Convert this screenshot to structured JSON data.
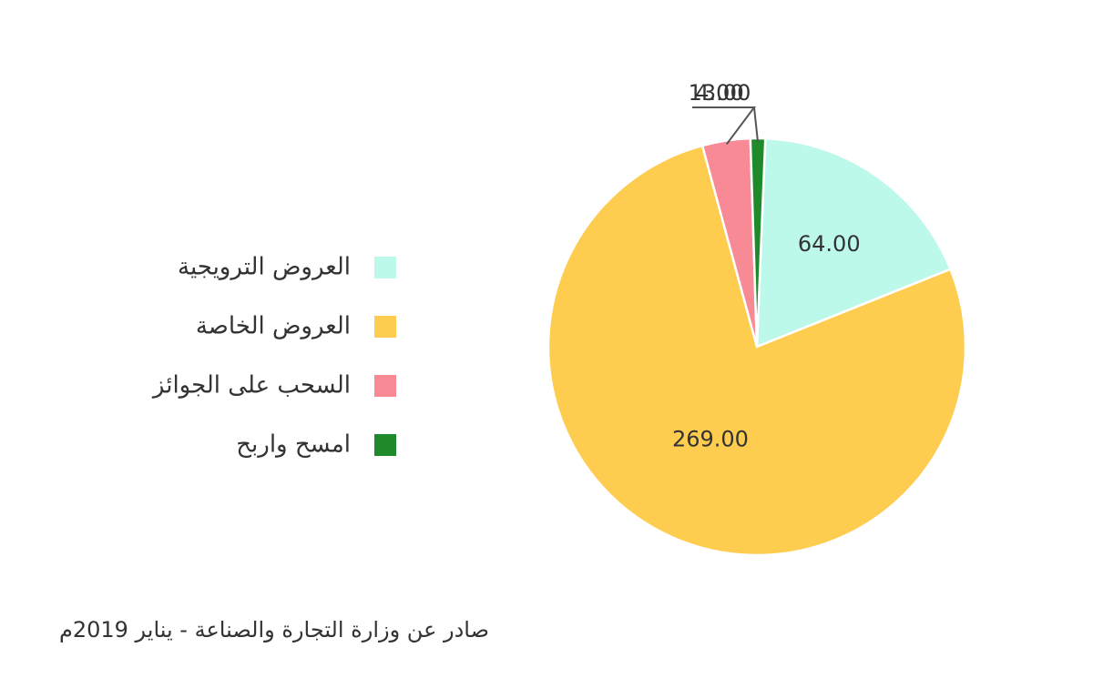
{
  "chart_data": {
    "type": "pie",
    "series": [
      {
        "name": "العروض الترويجية",
        "color": "#bdf9ea",
        "values": [
          64
        ],
        "value_labels": [
          "64.00"
        ]
      },
      {
        "name": "العروض الخاصة",
        "color": "#fecc4f",
        "values": [
          269
        ],
        "value_labels": [
          "269.00"
        ]
      },
      {
        "name": "السحب على الجوائز",
        "color": "#f78a94",
        "values": [
          13
        ],
        "value_labels": [
          "13.00"
        ]
      },
      {
        "name": "امسح واربح",
        "color": "#1f8a2a",
        "values": [
          4
        ],
        "value_labels": [
          "4.00"
        ]
      }
    ],
    "legend": "left",
    "source": "صادر عن وزارة التجارة والصناعة - يناير 2019م"
  }
}
